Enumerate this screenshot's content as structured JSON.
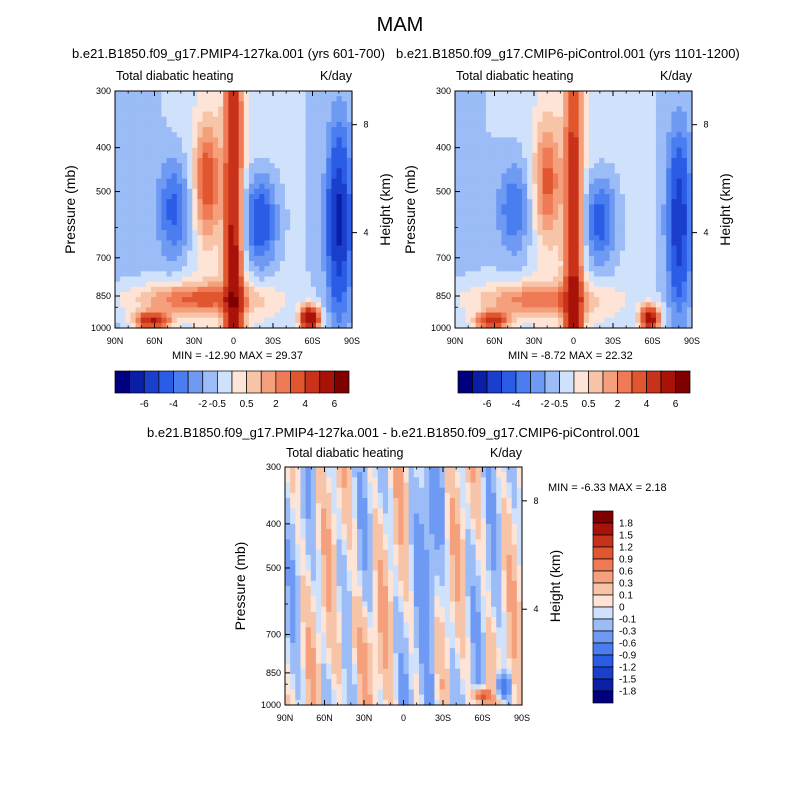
{
  "figure": {
    "title": "MAM"
  },
  "chart_data": [
    {
      "type": "heatmap",
      "title": "b.e21.B1850.f09_g17.PMIP4-127ka.001 (yrs 601-700)",
      "left_label": "Total diabatic heating",
      "right_label": "K/day",
      "ylabel": "Pressure (mb)",
      "y2label": "Height (km)",
      "xticks": [
        "90N",
        "60N",
        "30N",
        "0",
        "30S",
        "60S",
        "90S"
      ],
      "xlim": [
        90,
        -90
      ],
      "yticks": [
        300,
        400,
        500,
        700,
        850,
        1000
      ],
      "ylim": [
        1000,
        300
      ],
      "y2ticks": [
        "4",
        "8"
      ],
      "min": "-12.90",
      "max": "29.37",
      "stats_text": "MIN = -12.90  MAX =  29.37",
      "colorbar": {
        "orientation": "horizontal",
        "labels": [
          "-6",
          "-4",
          "-2",
          "-0.5",
          "0.5",
          "2",
          "4",
          "6"
        ]
      }
    },
    {
      "type": "heatmap",
      "title": "b.e21.B1850.f09_g17.CMIP6-piControl.001 (yrs 1101-1200)",
      "left_label": "Total diabatic heating",
      "right_label": "K/day",
      "ylabel": "Pressure (mb)",
      "y2label": "Height (km)",
      "xticks": [
        "90N",
        "60N",
        "30N",
        "0",
        "30S",
        "60S",
        "90S"
      ],
      "xlim": [
        90,
        -90
      ],
      "yticks": [
        300,
        400,
        500,
        700,
        850,
        1000
      ],
      "ylim": [
        1000,
        300
      ],
      "y2ticks": [
        "4",
        "8"
      ],
      "min": "-8.72",
      "max": "22.32",
      "stats_text": "MIN = -8.72  MAX =  22.32",
      "colorbar": {
        "orientation": "horizontal",
        "labels": [
          "-6",
          "-4",
          "-2",
          "-0.5",
          "0.5",
          "2",
          "4",
          "6"
        ]
      }
    },
    {
      "type": "heatmap",
      "title": "b.e21.B1850.f09_g17.PMIP4-127ka.001 - b.e21.B1850.f09_g17.CMIP6-piControl.001",
      "left_label": "Total diabatic heating",
      "right_label": "K/day",
      "ylabel": "Pressure (mb)",
      "y2label": "Height (km)",
      "xticks": [
        "90N",
        "60N",
        "30N",
        "0",
        "30S",
        "60S",
        "90S"
      ],
      "xlim": [
        90,
        -90
      ],
      "yticks": [
        300,
        400,
        500,
        700,
        850,
        1000
      ],
      "ylim": [
        1000,
        300
      ],
      "y2ticks": [
        "4",
        "8"
      ],
      "min": "-6.33",
      "max": "2.18",
      "stats_text": "MIN = -6.33  MAX =   2.18",
      "colorbar": {
        "orientation": "vertical",
        "labels": [
          "1.8",
          "1.5",
          "1.2",
          "0.9",
          "0.6",
          "0.3",
          "0.1",
          "0",
          "-0.1",
          "-0.3",
          "-0.6",
          "-0.9",
          "-1.2",
          "-1.5",
          "-1.8"
        ]
      }
    }
  ],
  "colors": {
    "scale": [
      "#00007f",
      "#0a1fa6",
      "#1a3fcc",
      "#2a5ce6",
      "#4a7ef0",
      "#6f9af3",
      "#9bbcf6",
      "#cfe1fb",
      "#fde4d6",
      "#f8c4a8",
      "#f5a07c",
      "#ee7b55",
      "#e0562f",
      "#c8321a",
      "#a81209",
      "#800000"
    ],
    "diff_scale": [
      "#800000",
      "#a81209",
      "#c8321a",
      "#e0562f",
      "#ee7b55",
      "#f5a07c",
      "#f8c4a8",
      "#fde4d6",
      "#cfe1fb",
      "#9bbcf6",
      "#6f9af3",
      "#4a7ef0",
      "#2a5ce6",
      "#1a3fcc",
      "#0a1fa6",
      "#00007f"
    ]
  }
}
